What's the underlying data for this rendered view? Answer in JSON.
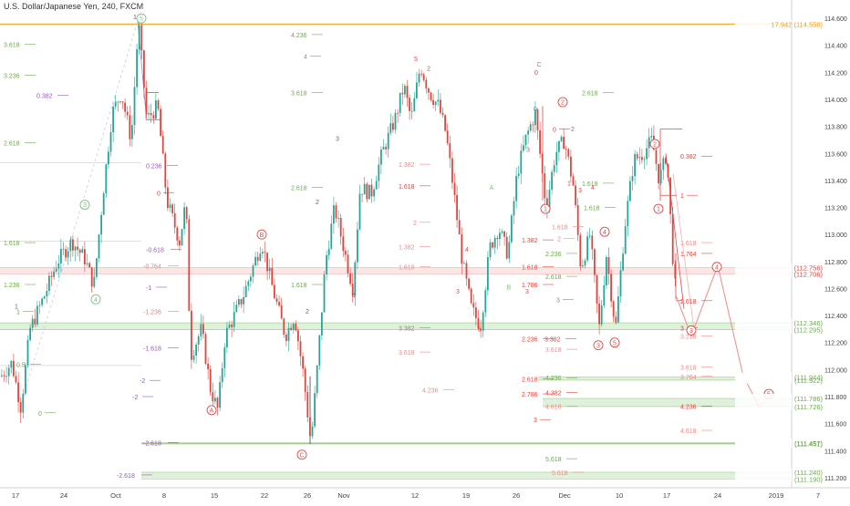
{
  "header": {
    "title": "U.S. Dollar/Japanese Yen, 240, FXCM"
  },
  "colors": {
    "up": "#26a69a",
    "down": "#e0453e",
    "greenLevel": "#6ea84f",
    "redLevel": "#e0453e",
    "pinkLevel": "#f08a8a",
    "orange": "#f39c12",
    "band_green": "#dcefd6",
    "band_red": "#fbe3e3",
    "wave_green": "#7dc27d",
    "wave_red": "#e04b4b"
  },
  "chart_data": {
    "type": "candlestick",
    "title": "U.S. Dollar/Japanese Yen, 240, FXCM",
    "ylim": [
      111.125,
      114.675
    ],
    "y_ticks": [
      "114.600",
      "114.400",
      "114.200",
      "114.000",
      "113.800",
      "113.600",
      "113.400",
      "113.200",
      "113.000",
      "112.800",
      "112.600",
      "112.400",
      "112.200",
      "112.000",
      "111.800",
      "111.600",
      "111.400",
      "111.200"
    ],
    "x_ticks": [
      "17",
      "24",
      "Oct",
      "8",
      "15",
      "22",
      "26",
      "Nov",
      "12",
      "19",
      "26",
      "Dec",
      "10",
      "17",
      "24",
      "2019",
      "7"
    ],
    "price_labels": [
      {
        "text": "17.942 (114.558)",
        "price": 114.558,
        "color": "#f39c12"
      },
      {
        "text": "(112.756)",
        "price": 112.756,
        "color": "#e0453e"
      },
      {
        "text": "(112.706)",
        "price": 112.706,
        "color": "#e0453e"
      },
      {
        "text": "(112.346)",
        "price": 112.346,
        "color": "#6ea84f"
      },
      {
        "text": "(112.295)",
        "price": 112.295,
        "color": "#6ea84f"
      },
      {
        "text": "(111.944)",
        "price": 111.944,
        "color": "#6ea84f"
      },
      {
        "text": "(111.922)",
        "price": 111.922,
        "color": "#6ea84f"
      },
      {
        "text": "(111.786)",
        "price": 111.786,
        "color": "#6ea84f"
      },
      {
        "text": "(111.726)",
        "price": 111.726,
        "color": "#6ea84f"
      },
      {
        "text": "(111.457)",
        "price": 111.457,
        "color": "#6ea84f"
      },
      {
        "text": "(111.451)",
        "price": 111.451,
        "color": "#6ea84f"
      },
      {
        "text": "(111.240)",
        "price": 111.24,
        "color": "#6ea84f"
      },
      {
        "text": "(111.190)",
        "price": 111.19,
        "color": "#6ea84f"
      }
    ],
    "fib_labels": [
      {
        "text": "3.618",
        "price": 114.41,
        "color": "#6ea84f"
      },
      {
        "text": "3.236",
        "price": 114.18,
        "color": "#6ea84f"
      },
      {
        "text": "2.618",
        "price": 113.68,
        "color": "#6ea84f"
      },
      {
        "text": "1.618",
        "price": 112.94,
        "color": "#6ea84f"
      },
      {
        "text": "1.236",
        "price": 112.63,
        "color": "#6ea84f"
      },
      {
        "text": "1",
        "price": 112.43,
        "color": "#6ea84f"
      },
      {
        "text": "0.5",
        "price": 112.04,
        "color": "#6ea84f"
      },
      {
        "text": "0",
        "price": 111.68,
        "color": "#6ea84f"
      },
      {
        "text": "0.382",
        "price": 114.03,
        "color": "#9b59b6"
      },
      {
        "text": "0.236",
        "price": 113.51,
        "color": "#9b59b6"
      },
      {
        "text": "0",
        "price": 113.31,
        "color": "#e0453e"
      },
      {
        "text": "-0.618",
        "price": 112.89,
        "color": "#9b59b6"
      },
      {
        "text": "-0.764",
        "price": 112.77,
        "color": "#d08a8a"
      },
      {
        "text": "-1",
        "price": 112.61,
        "color": "#9b59b6"
      },
      {
        "text": "-1.236",
        "price": 112.43,
        "color": "#d08a8a"
      },
      {
        "text": "-1.618",
        "price": 112.16,
        "color": "#9b59b6"
      },
      {
        "text": "-2",
        "price": 111.92,
        "color": "#9b59b6"
      },
      {
        "text": "-2",
        "price": 111.8,
        "color": "#9b59b6"
      },
      {
        "text": "-2.618",
        "price": 111.46,
        "color": "#9b59b6"
      },
      {
        "text": "-2.618",
        "price": 111.22,
        "color": "#9b59b6"
      },
      {
        "text": "4.236",
        "price": 114.48,
        "color": "#6ea84f"
      },
      {
        "text": "4",
        "price": 114.32,
        "color": "#6ea84f"
      },
      {
        "text": "3.618",
        "price": 114.05,
        "color": "#6ea84f"
      },
      {
        "text": "2.618",
        "price": 113.35,
        "color": "#6ea84f"
      },
      {
        "text": "1.618",
        "price": 112.63,
        "color": "#6ea84f"
      },
      {
        "text": "1.382",
        "price": 113.52,
        "color": "#f08a8a"
      },
      {
        "text": "1.618",
        "price": 113.36,
        "color": "#e0453e"
      },
      {
        "text": "2",
        "price": 113.09,
        "color": "#f08a8a"
      },
      {
        "text": "1.382",
        "price": 112.91,
        "color": "#f08a8a"
      },
      {
        "text": "1.618",
        "price": 112.76,
        "color": "#f08a8a"
      },
      {
        "text": "3.382",
        "price": 112.31,
        "color": "#888888"
      },
      {
        "text": "3.618",
        "price": 112.13,
        "color": "#f08a8a"
      },
      {
        "text": "4.236",
        "price": 111.85,
        "color": "#f08a8a"
      },
      {
        "text": "1.382",
        "price": 112.96,
        "color": "#e0453e"
      },
      {
        "text": "1.618",
        "price": 112.76,
        "color": "#e0453e"
      },
      {
        "text": "1.786",
        "price": 112.63,
        "color": "#e0453e"
      },
      {
        "text": "2.236",
        "price": 112.23,
        "color": "#e0453e"
      },
      {
        "text": "2.618",
        "price": 111.93,
        "color": "#e0453e"
      },
      {
        "text": "2.786",
        "price": 111.82,
        "color": "#e0453e"
      },
      {
        "text": "3",
        "price": 111.63,
        "color": "#e0453e"
      },
      {
        "text": "2.618",
        "price": 114.05,
        "color": "#6ea84f"
      },
      {
        "text": "1.618",
        "price": 113.38,
        "color": "#6ea84f"
      },
      {
        "text": "1.618",
        "price": 113.2,
        "color": "#6ea84f"
      },
      {
        "text": "2",
        "price": 112.97,
        "color": "#f08a8a"
      },
      {
        "text": "2.236",
        "price": 112.86,
        "color": "#6ea84f"
      },
      {
        "text": "2.618",
        "price": 112.69,
        "color": "#6ea84f"
      },
      {
        "text": "3",
        "price": 112.52,
        "color": "#888888"
      },
      {
        "text": "3.382",
        "price": 112.23,
        "color": "#e0453e"
      },
      {
        "text": "3.618",
        "price": 112.15,
        "color": "#f08a8a"
      },
      {
        "text": "4.236",
        "price": 111.94,
        "color": "#6ea84f"
      },
      {
        "text": "4.382",
        "price": 111.83,
        "color": "#e0453e"
      },
      {
        "text": "4.618",
        "price": 111.73,
        "color": "#f08a8a"
      },
      {
        "text": "5.618",
        "price": 111.34,
        "color": "#6ea84f"
      },
      {
        "text": "5.618",
        "price": 111.24,
        "color": "#f08a8a"
      },
      {
        "text": "1.618",
        "price": 113.06,
        "color": "#f08a8a"
      },
      {
        "text": "0",
        "price": 113.78,
        "color": "#e0453e"
      },
      {
        "text": "0.382",
        "price": 113.58,
        "color": "#e0453e"
      },
      {
        "text": "1",
        "price": 113.29,
        "color": "#e0453e"
      },
      {
        "text": "1.618",
        "price": 112.94,
        "color": "#f08a8a"
      },
      {
        "text": "1.764",
        "price": 112.86,
        "color": "#e0453e"
      },
      {
        "text": "2.618",
        "price": 112.51,
        "color": "#e0453e"
      },
      {
        "text": "3",
        "price": 112.31,
        "color": "#e0453e"
      },
      {
        "text": "3.236",
        "price": 112.25,
        "color": "#f08a8a"
      },
      {
        "text": "3.618",
        "price": 112.02,
        "color": "#f08a8a"
      },
      {
        "text": "3.764",
        "price": 111.95,
        "color": "#f08a8a"
      },
      {
        "text": "4.236",
        "price": 111.73,
        "color": "#e0453e"
      },
      {
        "text": "4.618",
        "price": 111.55,
        "color": "#f08a8a"
      }
    ],
    "wave_labels": [
      {
        "text": "5",
        "circled": true,
        "color": "#7dc27d",
        "price": 114.6
      },
      {
        "text": "3",
        "circled": true,
        "color": "#7dc27d",
        "price": 113.22
      },
      {
        "text": "4",
        "circled": true,
        "color": "#7dc27d",
        "price": 112.52
      },
      {
        "text": "B",
        "circled": true,
        "color": "#e04b4b",
        "price": 113.0
      },
      {
        "text": "A",
        "circled": true,
        "color": "#e04b4b",
        "price": 111.7
      },
      {
        "text": "C",
        "circled": true,
        "color": "#e04b4b",
        "price": 111.37
      },
      {
        "text": "2",
        "circled": true,
        "color": "#e04b4b",
        "price": 113.98
      },
      {
        "text": "1",
        "circled": true,
        "color": "#e04b4b",
        "price": 113.19
      },
      {
        "text": "4",
        "circled": true,
        "color": "#e04b4b",
        "price": 113.02
      },
      {
        "text": "3",
        "circled": true,
        "color": "#e04b4b",
        "price": 112.18
      },
      {
        "text": "5",
        "circled": true,
        "color": "#e04b4b",
        "price": 112.2
      },
      {
        "text": "2",
        "circled": true,
        "color": "#e04b4b",
        "price": 113.67
      },
      {
        "text": "1",
        "circled": true,
        "color": "#e04b4b",
        "price": 113.19
      },
      {
        "text": "4",
        "circled": true,
        "color": "#e04b4b",
        "price": 112.76
      },
      {
        "text": "3",
        "circled": true,
        "color": "#e04b4b",
        "price": 112.29
      },
      {
        "text": "5",
        "circled": true,
        "color": "#e04b4b",
        "price": 111.82
      },
      {
        "text": "1",
        "circled": false,
        "color": "#666666",
        "price": 114.61
      },
      {
        "text": "2",
        "circled": false,
        "color": "#666666",
        "price": 113.24
      },
      {
        "text": "1",
        "circled": false,
        "color": "#666666",
        "price": 112.47
      },
      {
        "text": "2",
        "circled": false,
        "color": "#666666",
        "price": 112.43
      },
      {
        "text": "3",
        "circled": false,
        "color": "#666666",
        "price": 113.71
      },
      {
        "text": "4",
        "circled": false,
        "color": "#666666",
        "price": 112.55
      },
      {
        "text": "5",
        "circled": false,
        "color": "#e04b4b",
        "price": 114.3
      },
      {
        "text": "2",
        "circled": false,
        "color": "#e04b4b",
        "price": 114.23
      },
      {
        "text": "4",
        "circled": false,
        "color": "#e04b4b",
        "price": 112.89
      },
      {
        "text": "3",
        "circled": false,
        "color": "#e04b4b",
        "price": 112.58
      },
      {
        "text": "5",
        "circled": false,
        "color": "#e04b4b",
        "price": 112.3
      },
      {
        "text": "A",
        "circled": false,
        "color": "#7dc27d",
        "price": 113.35
      },
      {
        "text": "B",
        "circled": false,
        "color": "#7dc27d",
        "price": 112.61
      },
      {
        "text": "C",
        "circled": false,
        "color": "#a07aa0",
        "price": 114.26
      },
      {
        "text": "0",
        "circled": false,
        "color": "#e0453e",
        "price": 114.2
      },
      {
        "text": "0",
        "circled": false,
        "color": "#888888",
        "price": 113.93
      },
      {
        "text": "1",
        "circled": false,
        "color": "#e04b4b",
        "price": 113.38
      },
      {
        "text": "2",
        "circled": false,
        "color": "#e04b4b",
        "price": 113.78
      },
      {
        "text": "3",
        "circled": false,
        "color": "#e04b4b",
        "price": 113.33
      },
      {
        "text": "4",
        "circled": false,
        "color": "#e04b4b",
        "price": 113.35
      },
      {
        "text": "3",
        "circled": false,
        "color": "#e04b4b",
        "price": 112.58
      },
      {
        "text": "3",
        "circled": false,
        "color": "#e04b4b",
        "price": 113.63
      }
    ]
  }
}
